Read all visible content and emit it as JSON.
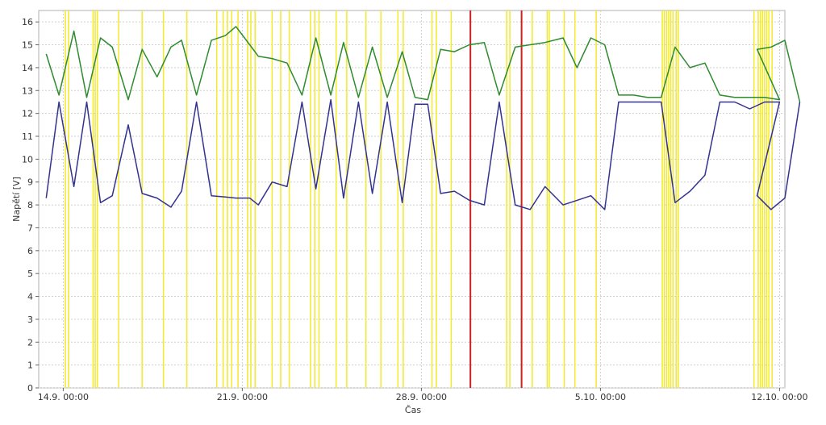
{
  "chart_data": {
    "type": "line",
    "xlabel": "Čas",
    "ylabel": "Napětí [V]",
    "ylim": [
      0,
      16.5
    ],
    "yticks": [
      0,
      1,
      2,
      3,
      4,
      5,
      6,
      7,
      8,
      9,
      10,
      11,
      12,
      13,
      14,
      15,
      16
    ],
    "xlim": [
      "2012-09-13T01:00",
      "2012-10-12T05:00"
    ],
    "xticks": [
      {
        "at": "2012-09-14T00:00",
        "label": "14.9. 00:00"
      },
      {
        "at": "2012-09-21T00:00",
        "label": "21.9. 00:00"
      },
      {
        "at": "2012-09-28T00:00",
        "label": "28.9. 00:00"
      },
      {
        "at": "2012-10-05T00:00",
        "label": "5.10. 00:00"
      },
      {
        "at": "2012-10-12T00:00",
        "label": "12.10. 00:00"
      }
    ],
    "grid": true,
    "series": [
      {
        "color": "#2e8b2e",
        "points": [
          [
            "2012-09-13T08:00",
            14.6
          ],
          [
            "2012-09-13T20:00",
            12.8
          ],
          [
            "2012-09-14T10:00",
            15.6
          ],
          [
            "2012-09-14T22:00",
            12.7
          ],
          [
            "2012-09-15T11:00",
            15.3
          ],
          [
            "2012-09-15T22:00",
            14.9
          ],
          [
            "2012-09-16T13:00",
            12.6
          ],
          [
            "2012-09-17T02:00",
            14.8
          ],
          [
            "2012-09-17T16:00",
            13.6
          ],
          [
            "2012-09-18T05:00",
            14.9
          ],
          [
            "2012-09-18T15:00",
            15.2
          ],
          [
            "2012-09-19T05:00",
            12.8
          ],
          [
            "2012-09-19T19:00",
            15.2
          ],
          [
            "2012-09-20T08:00",
            15.4
          ],
          [
            "2012-09-20T18:00",
            15.8
          ],
          [
            "2012-09-21T07:00",
            15.0
          ],
          [
            "2012-09-21T15:00",
            14.5
          ],
          [
            "2012-09-22T04:00",
            14.4
          ],
          [
            "2012-09-22T18:00",
            14.2
          ],
          [
            "2012-09-23T08:00",
            12.8
          ],
          [
            "2012-09-23T21:00",
            15.3
          ],
          [
            "2012-09-24T11:00",
            12.8
          ],
          [
            "2012-09-24T23:00",
            15.1
          ],
          [
            "2012-09-25T13:00",
            12.7
          ],
          [
            "2012-09-26T02:00",
            14.9
          ],
          [
            "2012-09-26T16:00",
            12.7
          ],
          [
            "2012-09-27T06:00",
            14.7
          ],
          [
            "2012-09-27T18:00",
            12.7
          ],
          [
            "2012-09-28T06:00",
            12.6
          ],
          [
            "2012-09-28T18:00",
            14.8
          ],
          [
            "2012-09-29T07:00",
            14.7
          ],
          [
            "2012-09-29T21:00",
            15.0
          ],
          [
            "2012-09-30T11:00",
            15.1
          ],
          [
            "2012-10-01T01:00",
            12.8
          ],
          [
            "2012-10-01T16:00",
            14.9
          ],
          [
            "2012-10-02T06:00",
            15.0
          ],
          [
            "2012-10-02T20:00",
            15.1
          ],
          [
            "2012-10-03T13:00",
            15.3
          ],
          [
            "2012-10-04T02:00",
            14.0
          ],
          [
            "2012-10-04T15:00",
            15.3
          ],
          [
            "2012-10-05T04:00",
            15.0
          ],
          [
            "2012-10-05T17:00",
            12.8
          ],
          [
            "2012-10-06T07:00",
            12.8
          ],
          [
            "2012-10-06T20:00",
            12.7
          ],
          [
            "2012-10-07T09:00",
            12.7
          ],
          [
            "2012-10-07T22:00",
            14.9
          ],
          [
            "2012-10-08T12:00",
            14.0
          ],
          [
            "2012-10-09T02:00",
            14.2
          ],
          [
            "2012-10-09T16:00",
            12.8
          ],
          [
            "2012-10-10T06:00",
            12.7
          ],
          [
            "2012-10-10T20:00",
            12.7
          ],
          [
            "2012-10-11T10:00",
            12.7
          ],
          [
            "2012-10-12T00:00",
            12.6
          ],
          [
            "2012-10-11T03:00",
            14.8
          ],
          [
            "2012-10-11T16:00",
            14.9
          ],
          [
            "2012-10-12T05:00",
            15.2
          ],
          [
            "2012-10-12T19:00",
            12.5
          ]
        ]
      },
      {
        "color": "#33338f",
        "points": [
          [
            "2012-09-13T08:00",
            8.3
          ],
          [
            "2012-09-13T20:00",
            12.5
          ],
          [
            "2012-09-14T10:00",
            8.8
          ],
          [
            "2012-09-14T22:00",
            12.5
          ],
          [
            "2012-09-15T11:00",
            8.1
          ],
          [
            "2012-09-15T22:00",
            8.4
          ],
          [
            "2012-09-16T13:00",
            11.5
          ],
          [
            "2012-09-17T02:00",
            8.5
          ],
          [
            "2012-09-17T16:00",
            8.3
          ],
          [
            "2012-09-18T05:00",
            7.9
          ],
          [
            "2012-09-18T15:00",
            8.6
          ],
          [
            "2012-09-19T05:00",
            12.5
          ],
          [
            "2012-09-19T19:00",
            8.4
          ],
          [
            "2012-09-20T08:00",
            8.35
          ],
          [
            "2012-09-20T18:00",
            8.3
          ],
          [
            "2012-09-21T07:00",
            8.3
          ],
          [
            "2012-09-21T15:00",
            8.0
          ],
          [
            "2012-09-22T04:00",
            9.0
          ],
          [
            "2012-09-22T18:00",
            8.8
          ],
          [
            "2012-09-23T08:00",
            12.5
          ],
          [
            "2012-09-23T21:00",
            8.7
          ],
          [
            "2012-09-24T11:00",
            12.6
          ],
          [
            "2012-09-24T23:00",
            8.3
          ],
          [
            "2012-09-25T13:00",
            12.5
          ],
          [
            "2012-09-26T02:00",
            8.5
          ],
          [
            "2012-09-26T16:00",
            12.5
          ],
          [
            "2012-09-27T06:00",
            8.1
          ],
          [
            "2012-09-27T18:00",
            12.4
          ],
          [
            "2012-09-28T06:00",
            12.4
          ],
          [
            "2012-09-28T18:00",
            8.5
          ],
          [
            "2012-09-29T07:00",
            8.6
          ],
          [
            "2012-09-29T21:00",
            8.2
          ],
          [
            "2012-09-30T11:00",
            8.0
          ],
          [
            "2012-10-01T01:00",
            12.5
          ],
          [
            "2012-10-01T16:00",
            8.0
          ],
          [
            "2012-10-02T06:00",
            7.8
          ],
          [
            "2012-10-02T20:00",
            8.8
          ],
          [
            "2012-10-03T13:00",
            8.0
          ],
          [
            "2012-10-04T02:00",
            8.2
          ],
          [
            "2012-10-04T15:00",
            8.4
          ],
          [
            "2012-10-05T04:00",
            7.8
          ],
          [
            "2012-10-05T17:00",
            12.5
          ],
          [
            "2012-10-06T07:00",
            12.5
          ],
          [
            "2012-10-06T20:00",
            12.5
          ],
          [
            "2012-10-07T09:00",
            12.5
          ],
          [
            "2012-10-07T22:00",
            8.1
          ],
          [
            "2012-10-08T12:00",
            8.6
          ],
          [
            "2012-10-09T02:00",
            9.3
          ],
          [
            "2012-10-09T16:00",
            12.5
          ],
          [
            "2012-10-10T06:00",
            12.5
          ],
          [
            "2012-10-10T20:00",
            12.2
          ],
          [
            "2012-10-11T10:00",
            12.5
          ],
          [
            "2012-10-12T00:00",
            12.5
          ],
          [
            "2012-10-11T03:00",
            8.4
          ],
          [
            "2012-10-11T16:00",
            7.8
          ],
          [
            "2012-10-12T05:00",
            8.3
          ],
          [
            "2012-10-12T19:00",
            12.5
          ]
        ]
      }
    ],
    "yellow_markers": [
      "2012-09-14T02:00",
      "2012-09-14T05:00",
      "2012-09-15T04:00",
      "2012-09-15T06:00",
      "2012-09-15T08:00",
      "2012-09-16T04:00",
      "2012-09-17T02:00",
      "2012-09-17T22:00",
      "2012-09-18T20:00",
      "2012-09-20T00:00",
      "2012-09-20T06:00",
      "2012-09-20T10:00",
      "2012-09-20T14:00",
      "2012-09-20T20:00",
      "2012-09-21T05:00",
      "2012-09-21T08:00",
      "2012-09-21T12:00",
      "2012-09-22T04:00",
      "2012-09-22T12:00",
      "2012-09-22T20:00",
      "2012-09-23T16:00",
      "2012-09-23T20:00",
      "2012-09-24T00:00",
      "2012-09-24T16:00",
      "2012-09-25T02:00",
      "2012-09-25T20:00",
      "2012-09-26T10:00",
      "2012-09-27T02:00",
      "2012-09-27T07:00",
      "2012-09-28T10:00",
      "2012-09-28T14:00",
      "2012-09-29T04:00",
      "2012-10-01T08:00",
      "2012-10-01T11:00",
      "2012-10-02T08:00",
      "2012-10-02T22:00",
      "2012-10-03T00:00",
      "2012-10-03T14:00",
      "2012-10-04T00:00",
      "2012-10-04T20:00",
      "2012-10-07T10:00",
      "2012-10-07T12:00",
      "2012-10-07T14:00",
      "2012-10-07T16:00",
      "2012-10-07T18:00",
      "2012-10-07T20:00",
      "2012-10-07T23:00",
      "2012-10-08T01:00",
      "2012-10-11T00:00",
      "2012-10-11T04:00",
      "2012-10-11T06:00",
      "2012-10-11T08:00",
      "2012-10-11T10:00",
      "2012-10-11T12:00",
      "2012-10-11T14:00",
      "2012-10-11T17:00"
    ],
    "red_markers": [
      "2012-09-29T22:00",
      "2012-10-01T22:00"
    ]
  }
}
